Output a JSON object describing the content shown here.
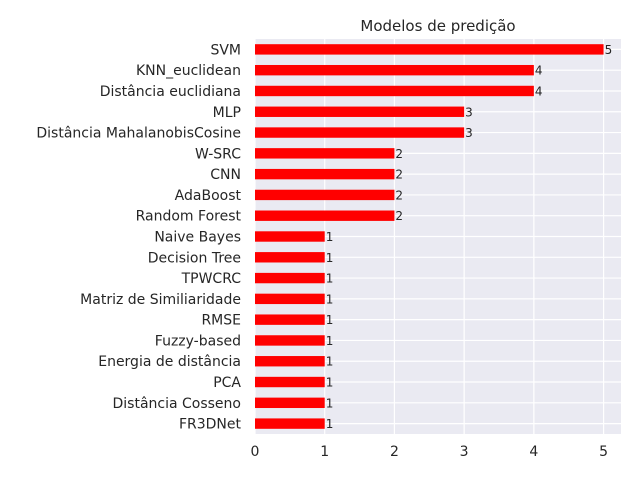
{
  "chart_data": {
    "type": "bar",
    "orientation": "horizontal",
    "title": "Modelos de predição",
    "xlabel": "",
    "ylabel": "",
    "xlim": [
      0,
      5.25
    ],
    "xticks": [
      "0",
      "1",
      "2",
      "3",
      "4",
      "5"
    ],
    "grid": true,
    "bar_color": "#ff0000",
    "background_color": "#eaeaf2",
    "categories": [
      "SVM",
      "KNN_euclidean",
      "Distância euclidiana",
      "MLP",
      "Distância MahalanobisCosine",
      "W-SRC",
      "CNN",
      "AdaBoost",
      "Random Forest",
      "Naive Bayes",
      "Decision Tree",
      "TPWCRC",
      "Matriz de Similiaridade",
      "RMSE",
      "Fuzzy-based",
      "Energia de distância",
      "PCA",
      "Distância Cosseno",
      "FR3DNet"
    ],
    "values": [
      5,
      4,
      4,
      3,
      3,
      2,
      2,
      2,
      2,
      1,
      1,
      1,
      1,
      1,
      1,
      1,
      1,
      1,
      1
    ]
  }
}
